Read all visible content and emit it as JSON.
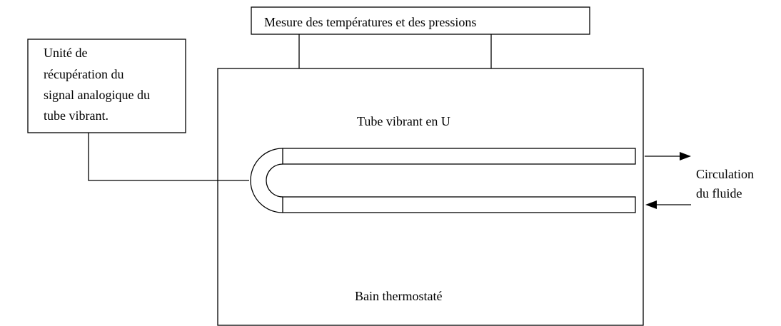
{
  "measure_box": {
    "label": "Mesure des températures et des pressions"
  },
  "unit_box": {
    "lines": [
      "Unité de",
      "récupération du",
      "signal analogique du",
      "tube vibrant."
    ]
  },
  "bath": {
    "tube_label": "Tube vibrant en U",
    "bath_label": "Bain thermostaté"
  },
  "flow": {
    "lines": [
      "Circulation",
      "du fluide"
    ]
  }
}
